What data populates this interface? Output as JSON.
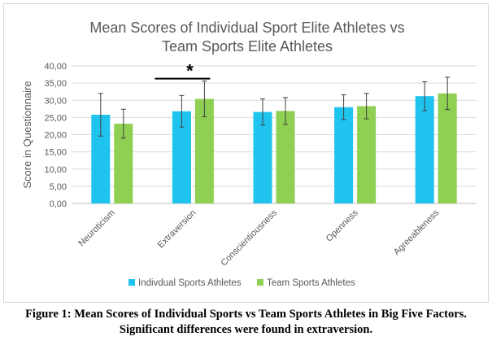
{
  "chart_data": {
    "type": "bar",
    "title_lines": [
      "Mean Scores of Individual Sport Elite Athletes vs",
      "Team Sports Elite Athletes"
    ],
    "xlabel": "",
    "ylabel": "Score in Questionnaire",
    "ylim": [
      0,
      40
    ],
    "yticks": [
      "0,00",
      "5,00",
      "10,00",
      "15,00",
      "20,00",
      "25,00",
      "30,00",
      "35,00",
      "40,00"
    ],
    "grid": true,
    "legend_position": "bottom",
    "categories": [
      "Neuroticism",
      "Extraversion",
      "Conscientiousness",
      "Openness",
      "Agreeableness"
    ],
    "series": [
      {
        "name": "Indivdual Sports Athletes",
        "color": "#1ec3ee",
        "values": [
          25.8,
          26.8,
          26.6,
          28.0,
          31.2
        ],
        "error": [
          6.2,
          4.6,
          3.8,
          3.6,
          4.2
        ]
      },
      {
        "name": "Team Sports Athletes",
        "color": "#8fcf52",
        "values": [
          23.2,
          30.4,
          26.9,
          28.3,
          32.0
        ],
        "error": [
          4.2,
          5.2,
          3.9,
          3.7,
          4.7
        ]
      }
    ],
    "annotations": [
      {
        "text": "*",
        "category": "Extraversion"
      }
    ]
  },
  "caption": {
    "line1": "Figure 1: Mean Scores of Individual Sports vs Team Sports Athletes in Big Five Factors.",
    "line2": "Significant differences were found in extraversion."
  }
}
